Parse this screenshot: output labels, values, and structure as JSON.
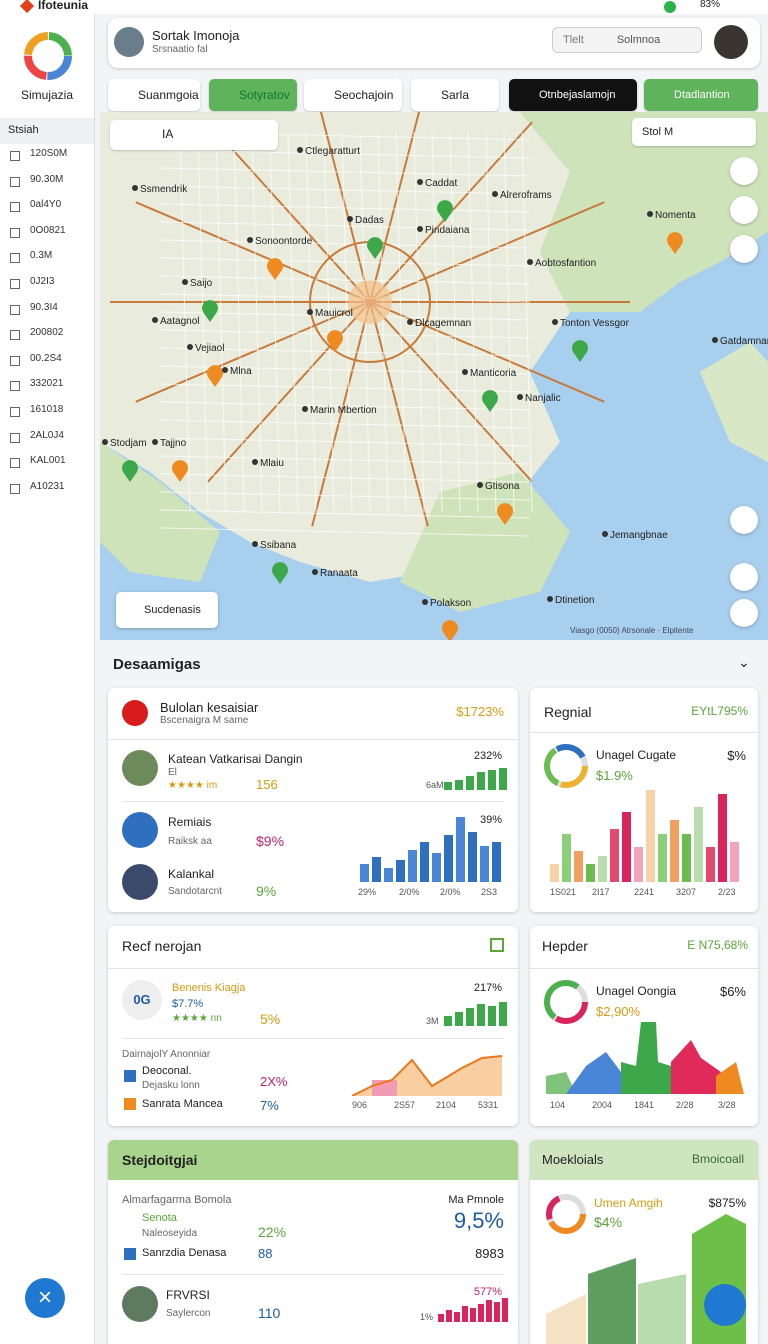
{
  "status": {
    "app": "Ifoteunia",
    "battery": "83%"
  },
  "sidebar": {
    "brand": "Simujazia",
    "section": "Stsiah",
    "items": [
      "120S0M",
      "90.30M",
      "0al4Y0",
      "0O0821",
      "0.3M",
      "0J2I3",
      "90.3I4",
      "200802",
      "00.2S4",
      "332021",
      "161018",
      "2AL0J4",
      "KAL001",
      "A10231"
    ]
  },
  "header": {
    "title": "Sortak Imonoja",
    "subtitle": "Srsnaatio fal",
    "filter": "Tlelt",
    "search": "Solmnoa"
  },
  "toolbar": {
    "buttons": [
      "Suanmgoia",
      "Sotyratov",
      "Seochajoin",
      "Sarla"
    ],
    "dropdown": "Otnbejaslamojn",
    "action": "Dtadlantion"
  },
  "map": {
    "tool": "IA",
    "search": "Stol M",
    "badge": "Sucdenasis",
    "attribution": "Viasgo (0050) Atrsonale · Elpitente",
    "places": [
      "Ctlegaratturt",
      "Caddat",
      "Alreroframs",
      "Nomenta",
      "Ssmendrik",
      "Dadas",
      "Pindaiana",
      "Sonoontorde",
      "Aobtosfantion",
      "Saijo",
      "Aatagnol",
      "Mauicrol",
      "Dlcagemnan",
      "Tonton Vessgor",
      "Gatdamnant",
      "Vejiaol",
      "Mlna",
      "Manticoria",
      "Nanjalic",
      "Tajjno",
      "Marin Mbertion",
      "Stodjam",
      "Mlaiu",
      "Gtisona",
      "Jemangbnae",
      "Ssibana",
      "Ranaata",
      "Polakson",
      "Dtinetion"
    ]
  },
  "section": "Desaamigas",
  "card_a": {
    "title": "Bulolan kesaisiar",
    "subtitle": "Bscenaigra M same",
    "value": "$1723%",
    "rows": [
      {
        "name": "Katean Vatkarisai Dangin",
        "sub": "El",
        "rating": "★★★★ im",
        "value": "156"
      },
      {
        "name": "Remiais",
        "sub": "Raiksk aa",
        "value": "$9%"
      },
      {
        "name": "Kalankal",
        "sub": "Sandotarcnt",
        "value": "9%"
      }
    ],
    "chart1": {
      "label": "232%",
      "axis": "6aM",
      "values": [
        8,
        10,
        14,
        18,
        20,
        22
      ]
    },
    "chart2": {
      "label": "39%",
      "values": [
        10,
        14,
        8,
        12,
        18,
        22,
        16,
        26,
        36,
        28,
        20,
        22
      ],
      "axis": [
        "29%",
        "2/0%",
        "2/0%",
        "2S3"
      ]
    }
  },
  "card_b": {
    "title": "Regnial",
    "value": "EYtL795%",
    "donut": "Unagel Cugate",
    "donut_value": "$1.9%",
    "right": "$%",
    "values": [
      8,
      22,
      14,
      8,
      12,
      24,
      32,
      16,
      42,
      22,
      28,
      22,
      34,
      16,
      40,
      18
    ],
    "axis": [
      "1S021",
      "2I17",
      "2241",
      "3207",
      "2/23"
    ]
  },
  "card_c": {
    "title": "Recf nerojan",
    "badge": "0G",
    "row": {
      "name": "Benenis Kiagja",
      "sub": "$7.7%",
      "rating": "★★★★ nn",
      "value": "5%"
    },
    "chart1": {
      "label": "217%",
      "axis": "3M",
      "values": [
        10,
        14,
        18,
        22,
        20,
        24
      ]
    },
    "legend_title": "DairnajolY Anonniar",
    "legend": [
      {
        "name": "Deoconal.",
        "sub": "Dejasku lonn",
        "value": "2X%"
      },
      {
        "name": "Sanrata Mancea",
        "value": "7%"
      }
    ],
    "axis": [
      "906",
      "2S57",
      "2104",
      "5331"
    ]
  },
  "card_d": {
    "title": "Hepder",
    "value": "E N75,68%",
    "donut": "Unagel Oongia",
    "donut_value": "$2,90%",
    "right": "$6%",
    "axis": [
      "104",
      "2004",
      "1841",
      "2/28",
      "3/28"
    ]
  },
  "card_e": {
    "title": "Stejdoitgjai",
    "subtitle": "Almarfagarma Bomola",
    "right_label": "Ma Pmnole",
    "big": "9,5%",
    "items": [
      {
        "name": "Senota",
        "sub": "Naleoseyida",
        "value": "22%"
      },
      {
        "name": "Sanrzdia Denasa",
        "value": "88"
      }
    ],
    "right_value": "8983",
    "row": {
      "name": "FRVRSI",
      "sub": "Saylercon",
      "value": "110"
    },
    "chart": {
      "label": "577%",
      "axis": "1%",
      "values": [
        8,
        12,
        10,
        16,
        14,
        18,
        22,
        20,
        24
      ]
    }
  },
  "card_f": {
    "title": "Moekloials",
    "action": "Bmoicoall",
    "donut": "Umen Amgih",
    "donut_value": "$4%",
    "right": "$875%"
  }
}
